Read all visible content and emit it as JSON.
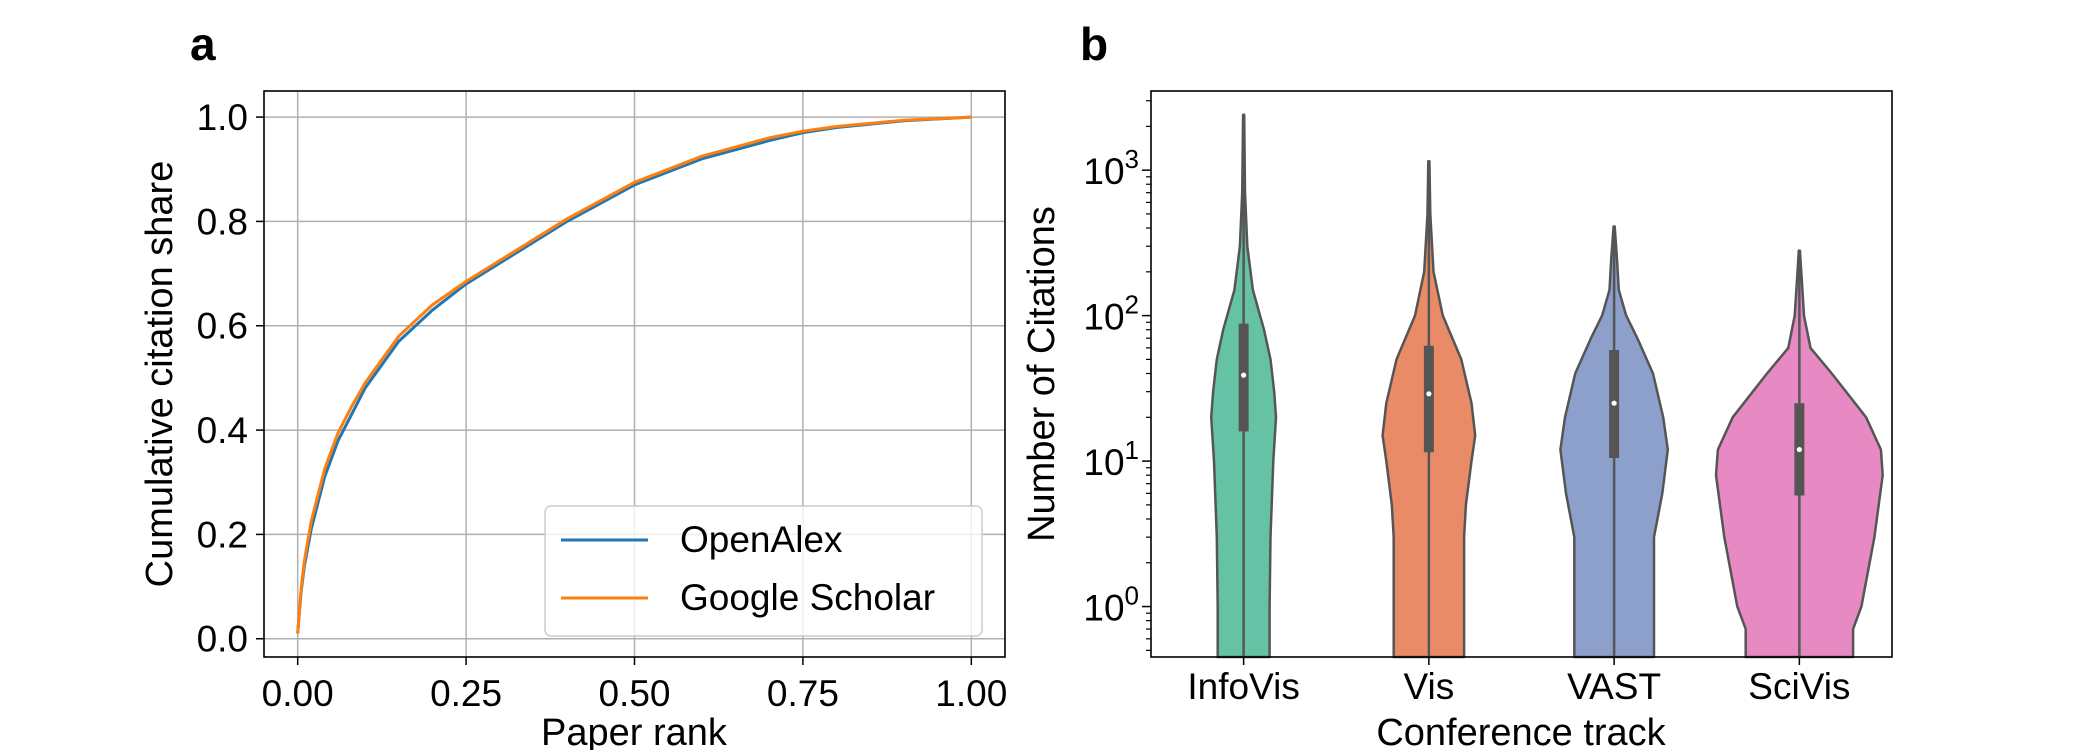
{
  "colors": {
    "openalex": "#1f77b4",
    "google_scholar": "#ff7f0e",
    "grid": "#b0b0b0",
    "violin_edge": "#555555",
    "infovis": "#66c2a5",
    "vis": "#e98b66",
    "vast": "#8da0cb",
    "scivis": "#e78ac3"
  },
  "panels": {
    "a": {
      "letter": "a"
    },
    "b": {
      "letter": "b"
    }
  },
  "chart_data": [
    {
      "type": "line",
      "panel": "a",
      "xlabel": "Paper rank",
      "ylabel": "Cumulative citation share",
      "xlim": [
        -0.05,
        1.05
      ],
      "ylim": [
        -0.035,
        1.05
      ],
      "xticks": [
        "0.00",
        "0.25",
        "0.50",
        "0.75",
        "1.00"
      ],
      "yticks": [
        "0.0",
        "0.2",
        "0.4",
        "0.6",
        "0.8",
        "1.0"
      ],
      "grid": true,
      "legend_position": "lower-right",
      "x": [
        0.0,
        0.005,
        0.01,
        0.02,
        0.04,
        0.06,
        0.08,
        0.1,
        0.15,
        0.2,
        0.25,
        0.3,
        0.4,
        0.5,
        0.6,
        0.7,
        0.75,
        0.8,
        0.9,
        1.0
      ],
      "series": [
        {
          "name": "OpenAlex",
          "color_key": "openalex",
          "values": [
            0.01,
            0.09,
            0.14,
            0.21,
            0.31,
            0.38,
            0.43,
            0.48,
            0.57,
            0.63,
            0.68,
            0.72,
            0.8,
            0.87,
            0.92,
            0.955,
            0.97,
            0.98,
            0.993,
            1.0
          ]
        },
        {
          "name": "Google Scholar",
          "color_key": "google_scholar",
          "values": [
            0.01,
            0.095,
            0.15,
            0.225,
            0.325,
            0.395,
            0.445,
            0.49,
            0.58,
            0.64,
            0.685,
            0.725,
            0.805,
            0.875,
            0.925,
            0.96,
            0.973,
            0.982,
            0.994,
            1.0
          ]
        }
      ]
    },
    {
      "type": "violin",
      "panel": "b",
      "xlabel": "Conference track",
      "ylabel": "Number of Citations",
      "yscale": "log",
      "ylim": [
        0.45,
        3500
      ],
      "ytick_labels": [
        {
          "value": 1,
          "base": "10",
          "exp": "0"
        },
        {
          "value": 10,
          "base": "10",
          "exp": "1"
        },
        {
          "value": 100,
          "base": "10",
          "exp": "2"
        },
        {
          "value": 1000,
          "base": "10",
          "exp": "3"
        }
      ],
      "categories": [
        "InfoVis",
        "Vis",
        "VAST",
        "SciVis"
      ],
      "violins": [
        {
          "category": "InfoVis",
          "color_key": "infovis",
          "min": 0.45,
          "max": 2400,
          "q1": 16,
          "median": 39,
          "q3": 88,
          "whisker_low": 0.45,
          "whisker_high": 2400,
          "profile": [
            [
              0.45,
              0.28
            ],
            [
              1,
              0.28
            ],
            [
              3,
              0.29
            ],
            [
              10,
              0.32
            ],
            [
              20,
              0.35
            ],
            [
              30,
              0.33
            ],
            [
              50,
              0.29
            ],
            [
              80,
              0.22
            ],
            [
              150,
              0.1
            ],
            [
              300,
              0.04
            ],
            [
              700,
              0.015
            ],
            [
              2400,
              0.006
            ]
          ]
        },
        {
          "category": "Vis",
          "color_key": "vis",
          "min": 0.45,
          "max": 1150,
          "q1": 11.5,
          "median": 29,
          "q3": 62,
          "whisker_low": 0.45,
          "whisker_high": 1150,
          "profile": [
            [
              0.45,
              0.38
            ],
            [
              3,
              0.38
            ],
            [
              5,
              0.4
            ],
            [
              10,
              0.46
            ],
            [
              15,
              0.5
            ],
            [
              25,
              0.46
            ],
            [
              50,
              0.35
            ],
            [
              100,
              0.15
            ],
            [
              200,
              0.05
            ],
            [
              500,
              0.015
            ],
            [
              1150,
              0.006
            ]
          ]
        },
        {
          "category": "VAST",
          "color_key": "vast",
          "min": 0.45,
          "max": 410,
          "q1": 10.5,
          "median": 25,
          "q3": 58,
          "whisker_low": 0.45,
          "whisker_high": 410,
          "profile": [
            [
              0.45,
              0.43
            ],
            [
              3,
              0.43
            ],
            [
              6,
              0.52
            ],
            [
              12,
              0.58
            ],
            [
              20,
              0.53
            ],
            [
              40,
              0.42
            ],
            [
              70,
              0.25
            ],
            [
              100,
              0.13
            ],
            [
              150,
              0.05
            ],
            [
              250,
              0.03
            ],
            [
              410,
              0.006
            ]
          ]
        },
        {
          "category": "SciVis",
          "color_key": "scivis",
          "min": 0.45,
          "max": 280,
          "q1": 5.8,
          "median": 12,
          "q3": 25,
          "whisker_low": 0.45,
          "whisker_high": 280,
          "profile": [
            [
              0.45,
              0.58
            ],
            [
              0.7,
              0.58
            ],
            [
              1,
              0.67
            ],
            [
              3,
              0.81
            ],
            [
              8,
              0.9
            ],
            [
              12,
              0.88
            ],
            [
              20,
              0.72
            ],
            [
              40,
              0.35
            ],
            [
              60,
              0.12
            ],
            [
              100,
              0.05
            ],
            [
              180,
              0.025
            ],
            [
              280,
              0.006
            ]
          ]
        }
      ]
    }
  ]
}
